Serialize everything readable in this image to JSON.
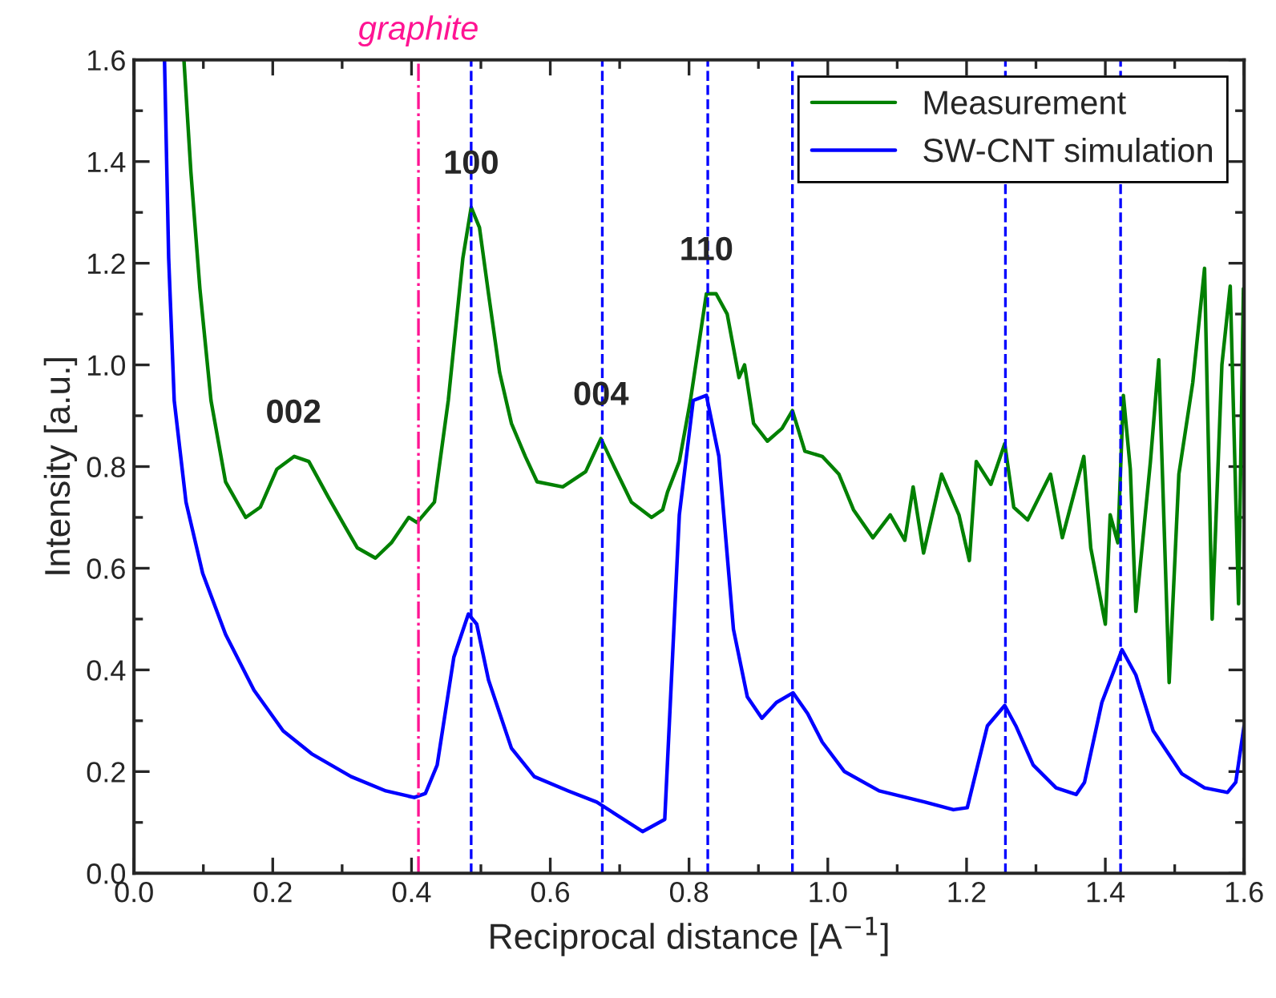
{
  "chart_data": {
    "type": "line",
    "xlabel": "Reciprocal distance [A$^{−1}$]",
    "ylabel": "Intensity [a.u.]",
    "xlim": [
      0,
      1.6
    ],
    "ylim": [
      0,
      1.6
    ],
    "xticks": [
      {
        "value": 0,
        "label": "0.0"
      },
      0.2,
      0.4,
      0.6,
      0.8,
      {
        "value": 1,
        "label": "1.0"
      },
      1.2,
      1.4,
      1.6
    ],
    "yticks": [
      {
        "value": 0,
        "label": "0.0"
      },
      0.2,
      0.4,
      0.6,
      0.8,
      {
        "value": 1,
        "label": "1.0"
      },
      1.2,
      1.4,
      1.6
    ],
    "grid": false,
    "legend": "top right",
    "line_style": "solid",
    "marker": "none",
    "series": [
      {
        "name": "Measurement",
        "color": "#008000",
        "x": [
          0.072,
          0.082,
          0.095,
          0.111,
          0.132,
          0.161,
          0.182,
          0.206,
          0.231,
          0.252,
          0.28,
          0.305,
          0.322,
          0.348,
          0.371,
          0.396,
          0.408,
          0.433,
          0.453,
          0.474,
          0.486,
          0.498,
          0.511,
          0.527,
          0.544,
          0.564,
          0.581,
          0.618,
          0.651,
          0.673,
          0.692,
          0.717,
          0.746,
          0.762,
          0.769,
          0.786,
          0.802,
          0.825,
          0.839,
          0.855,
          0.872,
          0.88,
          0.893,
          0.913,
          0.934,
          0.949,
          0.967,
          0.992,
          1.016,
          1.037,
          1.065,
          1.09,
          1.111,
          1.123,
          1.138,
          1.164,
          1.189,
          1.204,
          1.214,
          1.235,
          1.255,
          1.268,
          1.288,
          1.321,
          1.338,
          1.369,
          1.379,
          1.4,
          1.407,
          1.418,
          1.426,
          1.436,
          1.444,
          1.465,
          1.477,
          1.492,
          1.506,
          1.526,
          1.543,
          1.554,
          1.568,
          1.58,
          1.592,
          1.599
        ],
        "values": [
          1.6,
          1.38,
          1.15,
          0.93,
          0.77,
          0.7,
          0.72,
          0.795,
          0.82,
          0.81,
          0.74,
          0.68,
          0.64,
          0.62,
          0.65,
          0.7,
          0.69,
          0.73,
          0.93,
          1.21,
          1.31,
          1.27,
          1.14,
          0.985,
          0.885,
          0.82,
          0.77,
          0.76,
          0.79,
          0.855,
          0.8,
          0.73,
          0.7,
          0.715,
          0.75,
          0.81,
          0.93,
          1.14,
          1.14,
          1.1,
          0.975,
          1.0,
          0.885,
          0.85,
          0.875,
          0.91,
          0.83,
          0.82,
          0.785,
          0.715,
          0.66,
          0.705,
          0.655,
          0.76,
          0.63,
          0.785,
          0.705,
          0.615,
          0.81,
          0.765,
          0.845,
          0.72,
          0.695,
          0.785,
          0.66,
          0.82,
          0.64,
          0.49,
          0.705,
          0.65,
          0.94,
          0.795,
          0.515,
          0.81,
          1.01,
          0.375,
          0.785,
          0.965,
          1.19,
          0.5,
          1.0,
          1.155,
          0.53,
          1.15
        ]
      },
      {
        "name": "SW-CNT simulation",
        "color": "#0000ff",
        "x": [
          0.044,
          0.05,
          0.058,
          0.075,
          0.099,
          0.132,
          0.173,
          0.215,
          0.256,
          0.313,
          0.363,
          0.404,
          0.42,
          0.437,
          0.461,
          0.482,
          0.494,
          0.511,
          0.544,
          0.577,
          0.626,
          0.667,
          0.692,
          0.733,
          0.765,
          0.786,
          0.806,
          0.825,
          0.843,
          0.864,
          0.884,
          0.905,
          0.926,
          0.95,
          0.971,
          0.992,
          1.024,
          1.074,
          1.14,
          1.181,
          1.201,
          1.23,
          1.255,
          1.271,
          1.296,
          1.329,
          1.358,
          1.37,
          1.395,
          1.424,
          1.444,
          1.469,
          1.51,
          1.543,
          1.576,
          1.588,
          1.6
        ],
        "values": [
          1.6,
          1.21,
          0.93,
          0.73,
          0.59,
          0.47,
          0.36,
          0.28,
          0.235,
          0.19,
          0.162,
          0.149,
          0.157,
          0.213,
          0.425,
          0.51,
          0.49,
          0.38,
          0.246,
          0.19,
          0.162,
          0.14,
          0.118,
          0.082,
          0.106,
          0.705,
          0.93,
          0.94,
          0.82,
          0.48,
          0.347,
          0.305,
          0.336,
          0.355,
          0.314,
          0.258,
          0.2,
          0.162,
          0.14,
          0.125,
          0.129,
          0.29,
          0.33,
          0.29,
          0.213,
          0.168,
          0.155,
          0.179,
          0.336,
          0.44,
          0.39,
          0.28,
          0.196,
          0.168,
          0.159,
          0.179,
          0.29
        ]
      }
    ],
    "ref_lines": [
      {
        "axis": "x",
        "value": 0.41,
        "label": "graphite",
        "color": "#ff1493",
        "line_style": "dashdot"
      },
      {
        "axis": "x",
        "value": 0.486,
        "color": "#0000ff",
        "line_style": "dashed"
      },
      {
        "axis": "x",
        "value": 0.675,
        "color": "#0000ff",
        "line_style": "dashed"
      },
      {
        "axis": "x",
        "value": 0.827,
        "color": "#0000ff",
        "line_style": "dashed"
      },
      {
        "axis": "x",
        "value": 0.949,
        "color": "#0000ff",
        "line_style": "dashed"
      },
      {
        "axis": "x",
        "value": 1.256,
        "color": "#0000ff",
        "line_style": "dashed"
      },
      {
        "axis": "x",
        "value": 1.422,
        "color": "#0000ff",
        "line_style": "dashed"
      }
    ],
    "annotations": [
      {
        "text": "002",
        "x": 0.23,
        "y": 0.82
      },
      {
        "text": "100",
        "x": 0.486,
        "y": 1.31
      },
      {
        "text": "004",
        "x": 0.673,
        "y": 0.855
      },
      {
        "text": "110",
        "x": 0.825,
        "y": 1.14
      }
    ]
  }
}
